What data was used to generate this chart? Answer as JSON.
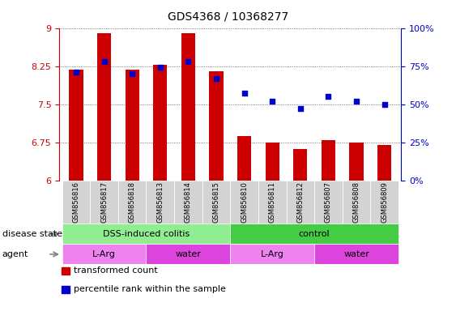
{
  "title": "GDS4368 / 10368277",
  "samples": [
    "GSM856816",
    "GSM856817",
    "GSM856818",
    "GSM856813",
    "GSM856814",
    "GSM856815",
    "GSM856810",
    "GSM856811",
    "GSM856812",
    "GSM856807",
    "GSM856808",
    "GSM856809"
  ],
  "bar_values": [
    8.18,
    8.9,
    8.18,
    8.28,
    8.9,
    8.15,
    6.88,
    6.74,
    6.62,
    6.8,
    6.74,
    6.7
  ],
  "dot_values": [
    71,
    78,
    70,
    74,
    78,
    67,
    57,
    52,
    47,
    55,
    52,
    50
  ],
  "ylim_left": [
    6.0,
    9.0
  ],
  "ylim_right": [
    0,
    100
  ],
  "yticks_left": [
    6.0,
    6.75,
    7.5,
    8.25,
    9.0
  ],
  "ytick_labels_left": [
    "6",
    "6.75",
    "7.5",
    "8.25",
    "9"
  ],
  "yticks_right": [
    0,
    25,
    50,
    75,
    100
  ],
  "ytick_labels_right": [
    "0%",
    "25%",
    "50%",
    "75%",
    "100%"
  ],
  "bar_color": "#cc0000",
  "dot_color": "#0000cc",
  "bar_width": 0.5,
  "disease_state_groups": [
    {
      "label": "DSS-induced colitis",
      "start": 0,
      "end": 6,
      "color": "#90ee90"
    },
    {
      "label": "control",
      "start": 6,
      "end": 12,
      "color": "#44cc44"
    }
  ],
  "agent_groups": [
    {
      "label": "L-Arg",
      "start": 0,
      "end": 3,
      "color": "#ee82ee"
    },
    {
      "label": "water",
      "start": 3,
      "end": 6,
      "color": "#dd44dd"
    },
    {
      "label": "L-Arg",
      "start": 6,
      "end": 9,
      "color": "#ee82ee"
    },
    {
      "label": "water",
      "start": 9,
      "end": 12,
      "color": "#dd44dd"
    }
  ],
  "row_labels": [
    "disease state",
    "agent"
  ],
  "legend_items": [
    "transformed count",
    "percentile rank within the sample"
  ],
  "dotted_line_color": "#555555",
  "axis_label_color_left": "#cc0000",
  "axis_label_color_right": "#0000cc",
  "tick_bg_color": "#d3d3d3",
  "fig_bg_color": "#ffffff"
}
